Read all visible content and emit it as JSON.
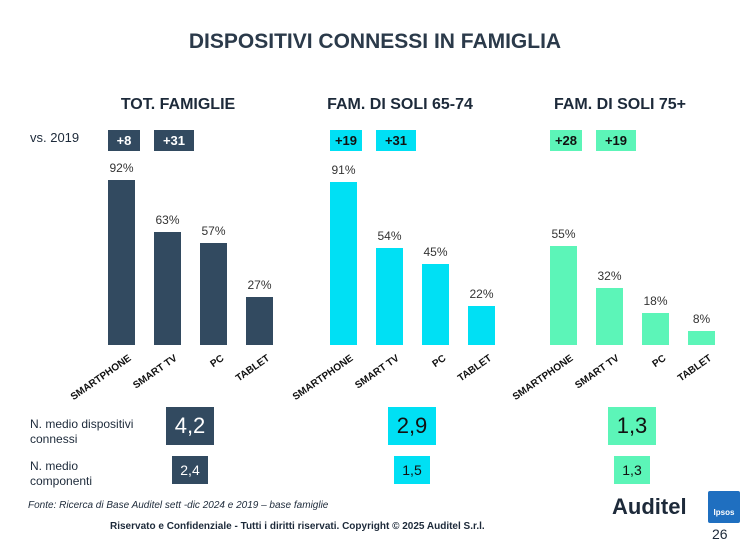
{
  "title": "DISPOSITIVI CONNESSI IN FAMIGLIA",
  "vs_label": "vs. 2019",
  "colors": {
    "navy": "#324a60",
    "cyan": "#00e0f4",
    "green": "#5cf5b8",
    "text": "#1d2a3a"
  },
  "groups": [
    {
      "title": "TOT. FAMIGLIE",
      "color": "#324a60",
      "badge_text_color": "#ffffff",
      "badges": [
        "+8",
        "+31"
      ],
      "avg_devices": "4,2",
      "avg_members": "2,4"
    },
    {
      "title": "FAM. DI SOLI 65-74",
      "color": "#00e0f4",
      "badge_text_color": "#111111",
      "badges": [
        "+19",
        "+31"
      ],
      "avg_devices": "2,9",
      "avg_members": "1,5"
    },
    {
      "title": "FAM. DI SOLI  75+",
      "color": "#5cf5b8",
      "badge_text_color": "#111111",
      "badges": [
        "+28",
        "+19"
      ],
      "avg_devices": "1,3",
      "avg_members": "1,3"
    }
  ],
  "chart_data": {
    "type": "bar",
    "categories": [
      "SMARTPHONE",
      "SMART TV",
      "PC",
      "TABLET"
    ],
    "unit": "%",
    "ylim": [
      0,
      100
    ],
    "series": [
      {
        "name": "TOT. FAMIGLIE",
        "values": [
          92,
          63,
          57,
          27
        ]
      },
      {
        "name": "FAM. DI SOLI 65-74",
        "values": [
          91,
          54,
          45,
          22
        ]
      },
      {
        "name": "FAM. DI SOLI  75+",
        "values": [
          55,
          32,
          18,
          8
        ]
      }
    ]
  },
  "row_labels": {
    "avg_devices": "N. medio dispositivi connessi",
    "avg_members": "N. medio componenti"
  },
  "source": "Fonte: Ricerca di Base Auditel sett -dic 2024 e 2019 – base famiglie",
  "copyright": "Riservato e Confidenziale - Tutti i diritti riservati. Copyright © 2025 Auditel S.r.l.",
  "page_number": "26",
  "logos": {
    "auditel": "Auditel",
    "ipsos": "Ipsos"
  }
}
